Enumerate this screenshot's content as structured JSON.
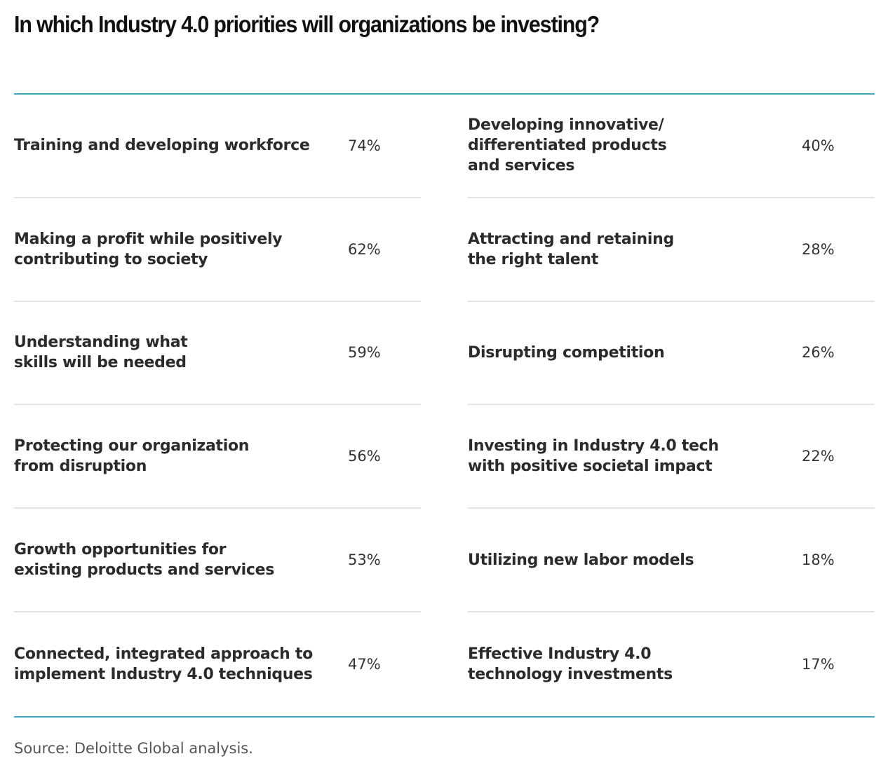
{
  "chart_data": {
    "type": "table",
    "title": "In which Industry 4.0 priorities will organizations be investing?",
    "columns": [
      {
        "rows": [
          {
            "label": "Training and developing workforce",
            "value": "74%"
          },
          {
            "label": "Making a profit while positively\ncontributing to society",
            "value": "62%"
          },
          {
            "label": "Understanding what\nskills will be needed",
            "value": "59%"
          },
          {
            "label": "Protecting our organization\nfrom disruption",
            "value": "56%"
          },
          {
            "label": "Growth opportunities for\nexisting products and services",
            "value": "53%"
          },
          {
            "label": "Connected, integrated approach to\nimplement Industry 4.0 techniques",
            "value": "47%"
          }
        ]
      },
      {
        "rows": [
          {
            "label": "Developing innovative/\ndifferentiated products\nand services",
            "value": "40%"
          },
          {
            "label": "Attracting and retaining\nthe right talent",
            "value": "28%"
          },
          {
            "label": "Disrupting competition",
            "value": "26%"
          },
          {
            "label": "Investing in Industry 4.0 tech\nwith positive societal impact",
            "value": "22%"
          },
          {
            "label": "Utilizing new labor models",
            "value": "18%"
          },
          {
            "label": "Effective Industry 4.0\ntechnology investments",
            "value": "17%"
          }
        ]
      }
    ],
    "source": "Source: Deloitte Global analysis."
  },
  "colors": {
    "accent_rule": "#40a9c2",
    "divider": "#e4e4e4",
    "text": "#2b2b2b"
  }
}
